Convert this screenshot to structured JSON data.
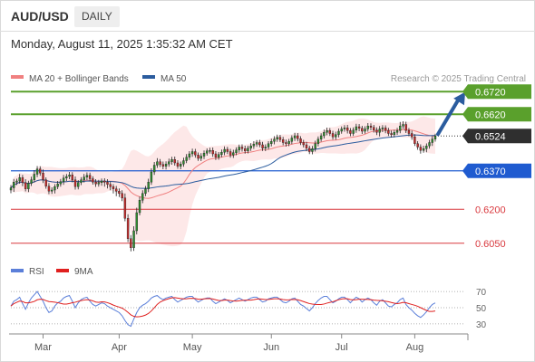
{
  "header": {
    "symbol": "AUD/USD",
    "timeframe_tab": "DAILY",
    "datetime": "Monday, August 11, 2025 1:35:32 AM CET"
  },
  "colors": {
    "ma20": "#f08080",
    "ma50": "#2b5c9e",
    "bands": "#fde4e4",
    "resistance": "#5aa02c",
    "pivot": "#1f5bd0",
    "support": "#d9393e",
    "arrow": "#2b5c9e",
    "candle_up": "#2e8b2e",
    "candle_down": "#c52b2b",
    "rsi": "#5b7fd9",
    "rsi_ma": "#e0201f"
  },
  "chart_data": [
    {
      "type": "candlestick",
      "legend": [
        {
          "name": "MA 20 + Bollinger Bands",
          "color": "#f08080"
        },
        {
          "name": "MA 50",
          "color": "#2b5c9e"
        }
      ],
      "watermark": "Research © 2025 Trading Central",
      "ylim": [
        0.5985,
        0.6745
      ],
      "levels": [
        {
          "value": 0.672,
          "label": "0.6720",
          "kind": "resistance"
        },
        {
          "value": 0.662,
          "label": "0.6620",
          "kind": "resistance"
        },
        {
          "value": 0.6524,
          "label": "0.6524",
          "kind": "last"
        },
        {
          "value": 0.637,
          "label": "0.6370",
          "kind": "pivot"
        },
        {
          "value": 0.62,
          "label": "0.6200",
          "kind": "support"
        },
        {
          "value": 0.605,
          "label": "0.6050",
          "kind": "support"
        }
      ],
      "target_arrow": {
        "from": 0.6524,
        "to": 0.672
      },
      "x_tick_labels": [
        "Mar",
        "Apr",
        "May",
        "Jun",
        "Jul",
        "Aug"
      ],
      "x_tick_index": [
        11,
        37,
        62,
        89,
        113,
        138
      ],
      "closes": [
        0.6295,
        0.632,
        0.6325,
        0.634,
        0.6318,
        0.629,
        0.6315,
        0.633,
        0.6355,
        0.6378,
        0.636,
        0.633,
        0.6302,
        0.628,
        0.6285,
        0.63,
        0.6312,
        0.6322,
        0.6338,
        0.6345,
        0.6352,
        0.633,
        0.63,
        0.6318,
        0.633,
        0.6342,
        0.635,
        0.6335,
        0.632,
        0.6312,
        0.6318,
        0.6325,
        0.632,
        0.631,
        0.63,
        0.629,
        0.628,
        0.627,
        0.625,
        0.616,
        0.607,
        0.603,
        0.6105,
        0.6185,
        0.624,
        0.627,
        0.629,
        0.632,
        0.6365,
        0.6395,
        0.641,
        0.6398,
        0.639,
        0.64,
        0.641,
        0.642,
        0.6405,
        0.639,
        0.64,
        0.6415,
        0.643,
        0.6445,
        0.6455,
        0.644,
        0.6425,
        0.6435,
        0.6448,
        0.6458,
        0.646,
        0.6445,
        0.643,
        0.6442,
        0.6452,
        0.6465,
        0.6455,
        0.644,
        0.645,
        0.6462,
        0.6475,
        0.6468,
        0.6458,
        0.647,
        0.648,
        0.6488,
        0.6495,
        0.6485,
        0.647,
        0.6475,
        0.649,
        0.65,
        0.651,
        0.6518,
        0.6508,
        0.6495,
        0.649,
        0.65,
        0.6515,
        0.6525,
        0.6512,
        0.6495,
        0.6485,
        0.647,
        0.6455,
        0.6468,
        0.649,
        0.651,
        0.6525,
        0.654,
        0.6548,
        0.6535,
        0.652,
        0.653,
        0.6545,
        0.6555,
        0.656,
        0.6548,
        0.6535,
        0.655,
        0.6565,
        0.6558,
        0.6545,
        0.6555,
        0.6568,
        0.6562,
        0.655,
        0.654,
        0.6555,
        0.656,
        0.6548,
        0.6535,
        0.653,
        0.654,
        0.6548,
        0.6568,
        0.6575,
        0.6548,
        0.6535,
        0.652,
        0.649,
        0.6475,
        0.646,
        0.6468,
        0.648,
        0.6495,
        0.651,
        0.6524
      ],
      "highs_ext": [
        0.0012,
        0.0014,
        0.001,
        0.0016,
        0.0012,
        0.0015,
        0.0011,
        0.0014,
        0.0018,
        0.0013,
        0.0012,
        0.0016,
        0.0011,
        0.0014,
        0.0012,
        0.0011,
        0.0013,
        0.0012,
        0.0014,
        0.0011,
        0.0013,
        0.0012,
        0.0015,
        0.0011,
        0.0012,
        0.0014,
        0.0013,
        0.0012,
        0.0011,
        0.0013,
        0.0012,
        0.0011,
        0.0012,
        0.0013,
        0.0012,
        0.0011,
        0.0013,
        0.0012,
        0.0014,
        0.002,
        0.0018,
        0.0016,
        0.002,
        0.0022,
        0.0016,
        0.0014,
        0.0013,
        0.0015,
        0.0016,
        0.0014,
        0.0016,
        0.0012,
        0.0013,
        0.0012,
        0.0014,
        0.0012,
        0.0013,
        0.0012,
        0.0011,
        0.0013,
        0.0014,
        0.0012,
        0.0013,
        0.0012,
        0.0011,
        0.0013,
        0.0012,
        0.0011,
        0.0012,
        0.0013,
        0.0012,
        0.0011,
        0.0012,
        0.0013,
        0.0011,
        0.0012,
        0.0013,
        0.0012,
        0.0011,
        0.0012,
        0.0013,
        0.0011,
        0.0012,
        0.0013,
        0.0011,
        0.0012,
        0.0013,
        0.0012,
        0.0011,
        0.0012,
        0.0013,
        0.0012,
        0.0011,
        0.0012,
        0.0013,
        0.0011,
        0.0012,
        0.0013,
        0.0012,
        0.0011,
        0.0012,
        0.0013,
        0.0011,
        0.0012,
        0.0013,
        0.0012,
        0.0011,
        0.0012,
        0.0013,
        0.0011,
        0.0012,
        0.0013,
        0.0012,
        0.0011,
        0.0012,
        0.0013,
        0.0011,
        0.0012,
        0.0013,
        0.0012,
        0.0011,
        0.0012,
        0.0013,
        0.0012,
        0.0011,
        0.0012,
        0.0013,
        0.0012,
        0.0011,
        0.0012,
        0.0013,
        0.0011,
        0.0012,
        0.0018,
        0.0014,
        0.0012,
        0.0011,
        0.0013,
        0.0012,
        0.0011,
        0.0012,
        0.0013,
        0.0011,
        0.0012,
        0.0013,
        0.001
      ]
    },
    {
      "type": "line",
      "legend": [
        {
          "name": "RSI",
          "color": "#5b7fd9"
        },
        {
          "name": "9MA",
          "color": "#e0201f"
        }
      ],
      "ylim": [
        22,
        78
      ],
      "y_ticks": [
        70,
        50,
        30
      ],
      "y_tick_labels": [
        "70",
        "50",
        "30"
      ],
      "rsi": [
        52,
        58,
        60,
        63,
        55,
        48,
        56,
        62,
        66,
        70,
        64,
        58,
        50,
        44,
        46,
        52,
        56,
        58,
        62,
        64,
        65,
        58,
        50,
        56,
        60,
        62,
        63,
        58,
        54,
        52,
        54,
        56,
        55,
        52,
        50,
        48,
        46,
        44,
        40,
        34,
        29,
        27,
        36,
        44,
        50,
        53,
        55,
        58,
        62,
        64,
        65,
        62,
        60,
        62,
        63,
        64,
        60,
        57,
        59,
        61,
        63,
        64,
        64,
        60,
        57,
        59,
        61,
        62,
        62,
        58,
        55,
        57,
        59,
        61,
        59,
        56,
        58,
        60,
        62,
        60,
        58,
        60,
        62,
        63,
        63,
        60,
        57,
        58,
        61,
        62,
        63,
        63,
        60,
        57,
        56,
        58,
        61,
        62,
        58,
        54,
        52,
        49,
        46,
        50,
        55,
        59,
        62,
        64,
        64,
        60,
        56,
        58,
        61,
        63,
        63,
        60,
        56,
        60,
        63,
        61,
        57,
        60,
        62,
        60,
        56,
        53,
        58,
        60,
        56,
        52,
        51,
        54,
        56,
        60,
        62,
        54,
        50,
        47,
        43,
        40,
        38,
        41,
        45,
        50,
        54,
        56
      ]
    }
  ]
}
